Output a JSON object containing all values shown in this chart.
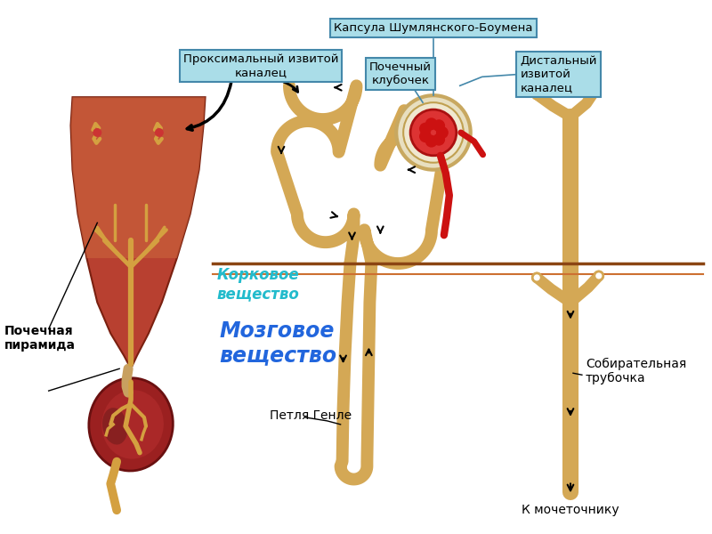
{
  "bg_color": "#ffffff",
  "labels": {
    "proximal": "Проксимальный извитой\nканалец",
    "capsule": "Капсула Шумлянского-Боумена",
    "glomerulus": "Почечный\nклубочек",
    "distal": "Дистальный\nизвитой\nканалец",
    "cortex": "Корковое\nвещество",
    "medulla": "Мозговое\nвещество",
    "henle": "Петля Генле",
    "collecting": "Собирательная\nтрубочка",
    "ureter": "К мочеточнику",
    "pyramid": "Почечная\nпирамида"
  },
  "colors": {
    "tubule": "#D4A855",
    "tubule_dark": "#B8860B",
    "pyramid_top": "#B84030",
    "pyramid_bot": "#8B2020",
    "cortex_band": "#C8603A",
    "kidney_outer": "#9B2020",
    "kidney_inner": "#7A1A1A",
    "vessel_gold": "#D4A040",
    "glom_red": "#CC2222",
    "glom_pink": "#EE4444",
    "capsule_bg": "#E8E8E8",
    "capsule_border": "#999999",
    "ann_box": "#AADDE8",
    "ann_border": "#4488AA",
    "cortex_text": "#22BBCC",
    "medulla_text": "#2266DD",
    "line_brown1": "#8B4513",
    "line_brown2": "#CD7030"
  }
}
